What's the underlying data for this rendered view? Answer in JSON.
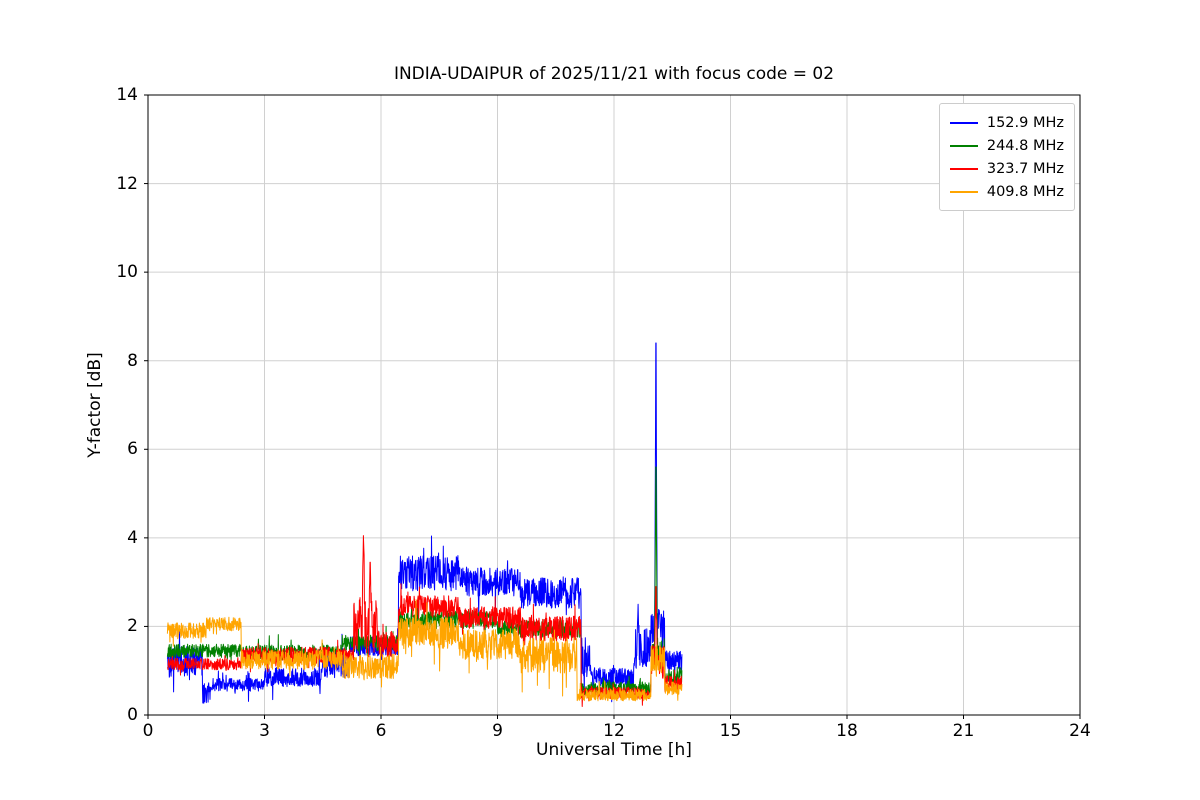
{
  "chart_data": {
    "type": "line",
    "title": "INDIA-UDAIPUR of 2025/11/21 with focus code = 02",
    "xlabel": "Universal Time [h]",
    "ylabel": "Y-factor [dB]",
    "xlim": [
      0,
      24
    ],
    "ylim": [
      0,
      14
    ],
    "xticks": [
      0,
      3,
      6,
      9,
      12,
      15,
      18,
      21,
      24
    ],
    "yticks": [
      0,
      2,
      4,
      6,
      8,
      10,
      12,
      14
    ],
    "grid": true,
    "grid_color": "#d0d0d0",
    "legend_position": "upper right",
    "x_data_range": [
      0.5,
      13.75
    ],
    "series": [
      {
        "name": "152.9 MHz",
        "color": "#0000ff",
        "segments": [
          [
            0.5,
            1.4,
            1.2,
            0.35
          ],
          [
            1.4,
            1.62,
            0.5,
            0.25
          ],
          [
            1.62,
            3.0,
            0.68,
            0.15
          ],
          [
            3.0,
            4.5,
            0.85,
            0.22
          ],
          [
            4.5,
            5.2,
            1.15,
            0.35
          ],
          [
            5.2,
            6.45,
            1.55,
            0.22
          ],
          [
            6.45,
            8.0,
            3.2,
            0.4
          ],
          [
            8.0,
            9.6,
            3.0,
            0.35
          ],
          [
            9.6,
            11.15,
            2.75,
            0.35
          ],
          [
            11.15,
            11.4,
            1.3,
            0.45
          ],
          [
            11.4,
            12.5,
            0.85,
            0.22
          ],
          [
            12.5,
            12.95,
            1.5,
            0.45
          ],
          [
            12.95,
            13.3,
            1.9,
            0.5
          ],
          [
            13.3,
            13.75,
            1.2,
            0.25
          ]
        ],
        "spikes": [
          [
            13.08,
            8.4
          ],
          [
            12.62,
            2.5
          ],
          [
            11.05,
            3.1
          ]
        ]
      },
      {
        "name": "244.8 MHz",
        "color": "#008000",
        "segments": [
          [
            0.5,
            2.4,
            1.45,
            0.15
          ],
          [
            2.4,
            5.0,
            1.4,
            0.18
          ],
          [
            5.0,
            6.45,
            1.62,
            0.18
          ],
          [
            6.45,
            9.0,
            2.15,
            0.2
          ],
          [
            9.0,
            11.15,
            1.95,
            0.2
          ],
          [
            11.15,
            12.95,
            0.6,
            0.15
          ],
          [
            12.95,
            13.3,
            1.4,
            0.4
          ],
          [
            13.3,
            13.75,
            0.9,
            0.18
          ]
        ],
        "spikes": [
          [
            13.08,
            5.6
          ]
        ]
      },
      {
        "name": "323.7 MHz",
        "color": "#ff0000",
        "segments": [
          [
            0.5,
            2.4,
            1.15,
            0.13
          ],
          [
            2.4,
            5.3,
            1.35,
            0.18
          ],
          [
            5.3,
            5.9,
            2.0,
            0.7
          ],
          [
            5.9,
            6.45,
            1.6,
            0.3
          ],
          [
            6.45,
            8.0,
            2.45,
            0.25
          ],
          [
            8.0,
            9.6,
            2.2,
            0.25
          ],
          [
            9.6,
            11.15,
            1.95,
            0.28
          ],
          [
            11.15,
            12.95,
            0.5,
            0.13
          ],
          [
            12.95,
            13.3,
            1.2,
            0.4
          ],
          [
            13.3,
            13.75,
            0.7,
            0.18
          ]
        ],
        "spikes": [
          [
            5.55,
            4.05
          ],
          [
            5.72,
            3.45
          ],
          [
            13.08,
            2.9
          ]
        ]
      },
      {
        "name": "409.8 MHz",
        "color": "#ffa500",
        "segments": [
          [
            0.5,
            1.5,
            1.9,
            0.18
          ],
          [
            1.5,
            2.4,
            2.05,
            0.15
          ],
          [
            2.4,
            5.0,
            1.25,
            0.22
          ],
          [
            5.0,
            6.45,
            1.1,
            0.28
          ],
          [
            6.45,
            8.0,
            1.85,
            0.35
          ],
          [
            8.0,
            9.6,
            1.6,
            0.35
          ],
          [
            9.6,
            11.05,
            1.35,
            0.4
          ],
          [
            11.05,
            12.95,
            0.45,
            0.13
          ],
          [
            12.95,
            13.3,
            1.3,
            0.35
          ],
          [
            13.3,
            13.75,
            0.6,
            0.15
          ]
        ],
        "spikes": []
      }
    ]
  }
}
